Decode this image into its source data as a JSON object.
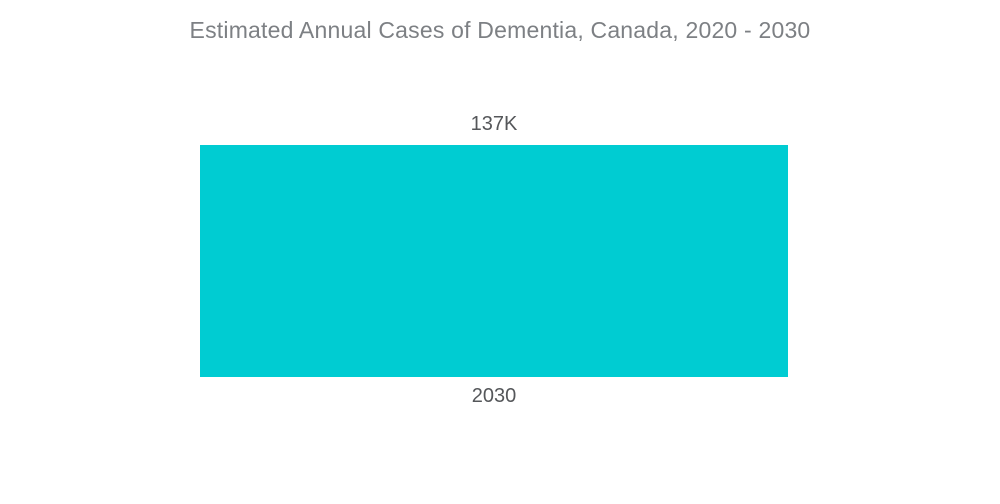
{
  "chart_data": {
    "type": "bar",
    "title": "Estimated Annual Cases of Dementia, Canada, 2020 - 2030",
    "categories": [
      "2030"
    ],
    "values": [
      137000
    ],
    "data_labels": [
      "137K"
    ],
    "xlabel": "",
    "ylabel": "",
    "ylim": [
      0,
      137000
    ],
    "grid": false,
    "legend": "none",
    "bar_color": "#00ccd2"
  },
  "colors": {
    "background": "#ffffff",
    "bar": "#00ccd2",
    "title_text": "#7d8084",
    "label_text": "#55575a"
  }
}
